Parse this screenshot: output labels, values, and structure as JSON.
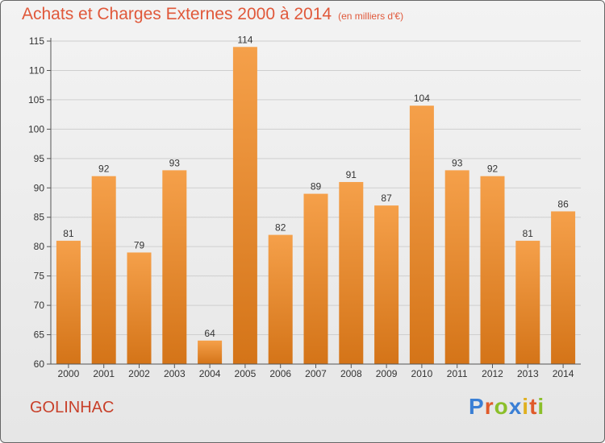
{
  "header": {
    "title": "Achats et Charges Externes 2000 à 2014",
    "unit_note": "(en milliers d'€)"
  },
  "footer": {
    "commune": "GOLINHAC",
    "logo_letters": [
      "P",
      "r",
      "o",
      "x",
      "i",
      "t",
      "i"
    ],
    "logo_colors": [
      "#3a7fd5",
      "#e05a2a",
      "#8bbf2a",
      "#3a7fd5",
      "#e0b020",
      "#e05a2a",
      "#8bbf2a"
    ]
  },
  "chart_data": {
    "type": "bar",
    "title": "Achats et Charges Externes 2000 à 2014",
    "xlabel": "",
    "ylabel": "",
    "categories": [
      "2000",
      "2001",
      "2002",
      "2003",
      "2004",
      "2005",
      "2006",
      "2007",
      "2008",
      "2009",
      "2010",
      "2011",
      "2012",
      "2013",
      "2014"
    ],
    "values": [
      81,
      92,
      79,
      93,
      64,
      114,
      82,
      89,
      91,
      87,
      104,
      93,
      92,
      81,
      86
    ],
    "ylim": [
      60,
      115
    ],
    "yticks": [
      60,
      65,
      70,
      75,
      80,
      85,
      90,
      95,
      100,
      105,
      110,
      115
    ],
    "grid": true,
    "bar_color_top": "#f5a04a",
    "bar_color_bottom": "#d47418"
  }
}
